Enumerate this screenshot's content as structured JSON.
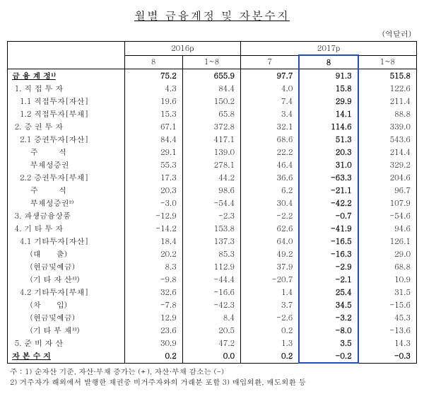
{
  "title": "월별 금융계정 및 자본수지",
  "unit": "(억달러)",
  "header": {
    "year1": "2016p",
    "year2": "2017p",
    "cols": [
      "8",
      "1~8",
      "7",
      "8",
      "1~8"
    ]
  },
  "rows": [
    {
      "label": "금 융 계 정¹⁾",
      "v": [
        "75.2",
        "655.9",
        "97.7",
        "91.3",
        "515.8"
      ],
      "bold": true,
      "underline": true
    },
    {
      "label": " 1. 직 접 투 자",
      "v": [
        "4.3",
        "84.4",
        "4.0",
        "15.8",
        "122.6"
      ]
    },
    {
      "label": "   1.1 직접투자[자산]",
      "v": [
        "19.6",
        "150.2",
        "7.4",
        "29.9",
        "211.4"
      ]
    },
    {
      "label": "   1.2 직접투자[부채]",
      "v": [
        "15.3",
        "65.8",
        "3.4",
        "14.1",
        "88.8"
      ]
    },
    {
      "label": " 2. 증 권 투 자",
      "v": [
        "67.1",
        "372.8",
        "32.1",
        "114.6",
        "339.0"
      ]
    },
    {
      "label": "   2.1 증권투자[자산]",
      "v": [
        "84.4",
        "417.1",
        "68.6",
        "51.3",
        "543.6"
      ]
    },
    {
      "label": "       주        식",
      "v": [
        "29.1",
        "139.0",
        "22.2",
        "20.3",
        "214.4"
      ]
    },
    {
      "label": "       부채성증권",
      "v": [
        "55.3",
        "278.1",
        "46.4",
        "31.0",
        "329.2"
      ]
    },
    {
      "label": "   2.2 증권투자[부채]",
      "v": [
        "17.3",
        "44.2",
        "36.6",
        "-63.3",
        "204.6"
      ]
    },
    {
      "label": "       주        식",
      "v": [
        "20.3",
        "98.6",
        "6.2",
        "-21.1",
        "96.7"
      ]
    },
    {
      "label": "       부채성증권²⁾",
      "v": [
        "-3.0",
        "-54.4",
        "30.4",
        "-42.2",
        "107.9"
      ]
    },
    {
      "label": " 3. 파생금융상품",
      "v": [
        "-12.9",
        "-2.3",
        "-2.2",
        "-0.7",
        "-54.6"
      ]
    },
    {
      "label": " 4. 기 타 투 자",
      "v": [
        "-14.2",
        "153.8",
        "62.6",
        "-41.9",
        "94.6"
      ]
    },
    {
      "label": "   4.1 기타투자[자산]",
      "v": [
        "18.4",
        "137.3",
        "64.0",
        "-16.5",
        "126.1"
      ]
    },
    {
      "label": "       (대      출)",
      "v": [
        "20.2",
        "85.3",
        "49.2",
        "-16.3",
        "29.0"
      ]
    },
    {
      "label": "       (현금및예금)",
      "v": [
        "8.3",
        "112.9",
        "37.9",
        "-2.9",
        "68.8"
      ]
    },
    {
      "label": "       (기 타 자 산³⁾)",
      "v": [
        "-9.8",
        "-44.4",
        "-20.7",
        "-2.1",
        "10.9"
      ]
    },
    {
      "label": "   4.2 기타투자[부채]",
      "v": [
        "32.6",
        "-16.6",
        "1.4",
        "25.4",
        "31.5"
      ]
    },
    {
      "label": "       (차      입)",
      "v": [
        "-7.8",
        "-42.3",
        "3.7",
        "34.5",
        "-15.6"
      ]
    },
    {
      "label": "       (현금및예금)",
      "v": [
        "12.9",
        "8.4",
        "-2.6",
        "-3.2",
        "45.3"
      ]
    },
    {
      "label": "       (기 타 부 채³⁾)",
      "v": [
        "23.6",
        "20.5",
        "0.2",
        "-8.0",
        "-13.6"
      ]
    },
    {
      "label": " 5. 준 비 자 산",
      "v": [
        "30.9",
        "47.2",
        "1.3",
        "3.5",
        "14.3"
      ]
    },
    {
      "label": "자 본 수 지",
      "v": [
        "0.2",
        "0.0",
        "0.2",
        "-0.2",
        "-0.3"
      ],
      "bold": true,
      "underline": true,
      "last": true
    }
  ],
  "notes": [
    "주 : 1) 순자산 기준, 자산·부채 증가는 (+), 자산·부채 감소는 (-)",
    "     2) 거주자가 해외에서 발행한 채권중 비거주자와의 거래분 포함 3) 매입외환, 매도외환 등"
  ]
}
